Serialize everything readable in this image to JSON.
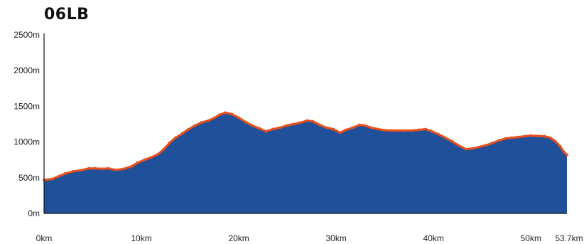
{
  "chart_data": {
    "type": "area",
    "title": "06LB",
    "xlabel": "",
    "ylabel": "",
    "xlim": [
      0,
      53.7
    ],
    "ylim": [
      0,
      2500
    ],
    "grid": false,
    "x_ticks": [
      {
        "value": 0,
        "label": "0km"
      },
      {
        "value": 10,
        "label": "10km"
      },
      {
        "value": 20,
        "label": "20km"
      },
      {
        "value": 30,
        "label": "30km"
      },
      {
        "value": 40,
        "label": "40km"
      },
      {
        "value": 50,
        "label": "50km"
      },
      {
        "value": 53.7,
        "label": "53.7km"
      }
    ],
    "y_ticks": [
      {
        "value": 0,
        "label": "0m"
      },
      {
        "value": 500,
        "label": "500m"
      },
      {
        "value": 1000,
        "label": "1000m"
      },
      {
        "value": 1500,
        "label": "1500m"
      },
      {
        "value": 2000,
        "label": "2000m"
      },
      {
        "value": 2500,
        "label": "2500m"
      }
    ],
    "colors": {
      "fill": "#21509a",
      "line": "#e8501c",
      "axis": "#111111"
    },
    "series": [
      {
        "x": [
          0,
          0.8,
          1.5,
          2.2,
          3,
          3.8,
          4.6,
          5.2,
          6,
          6.6,
          7.4,
          8.2,
          9,
          9.6,
          10.3,
          11,
          11.7,
          12.3,
          12.9,
          13.5,
          14.2,
          14.8,
          15.5,
          16.2,
          16.9,
          17.5,
          18,
          18.6,
          19.3,
          20,
          20.7,
          21.4,
          22.1,
          22.8,
          23.5,
          24.2,
          24.9,
          25.6,
          26.3,
          27,
          27.6,
          28.3,
          29,
          29.7,
          30.4,
          31,
          31.7,
          32.4,
          33,
          33.6,
          34.3,
          35,
          35.6,
          36.3,
          37,
          37.7,
          38.5,
          39.2,
          39.8,
          40.5,
          41.2,
          41.9,
          42.6,
          43.3,
          44,
          44.7,
          45.4,
          46,
          46.7,
          47.4,
          48,
          48.7,
          49.3,
          50,
          50.7,
          51.4,
          52,
          52.5,
          53,
          53.4,
          53.7
        ],
        "y": [
          470,
          480,
          520,
          560,
          590,
          605,
          630,
          630,
          625,
          630,
          610,
          625,
          660,
          710,
          750,
          785,
          830,
          900,
          990,
          1060,
          1120,
          1175,
          1230,
          1275,
          1300,
          1340,
          1380,
          1410,
          1390,
          1340,
          1280,
          1230,
          1190,
          1150,
          1180,
          1200,
          1230,
          1250,
          1270,
          1300,
          1290,
          1240,
          1200,
          1180,
          1130,
          1170,
          1200,
          1240,
          1230,
          1200,
          1180,
          1165,
          1160,
          1160,
          1160,
          1160,
          1170,
          1180,
          1150,
          1110,
          1060,
          1010,
          950,
          900,
          910,
          930,
          955,
          985,
          1020,
          1050,
          1060,
          1070,
          1080,
          1090,
          1085,
          1080,
          1060,
          1010,
          940,
          860,
          820
        ]
      }
    ]
  }
}
